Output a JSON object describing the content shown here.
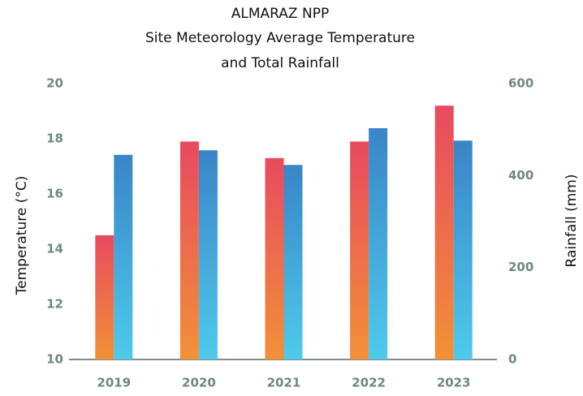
{
  "chart_data": {
    "type": "bar",
    "title": [
      "ALMARAZ NPP",
      "Site Meteorology Average Temperature",
      "and Total Rainfall"
    ],
    "categories": [
      "2019",
      "2020",
      "2021",
      "2022",
      "2023"
    ],
    "series": [
      {
        "color": "#e84a5f",
        "gradient_to": "#f29137",
        "values": [
          14.5,
          17.9,
          17.3,
          17.9,
          19.2
        ]
      },
      {
        "color": "#3985c7",
        "gradient_to": "#4fcaec",
        "axis": "y2",
        "values": [
          445,
          455,
          423,
          503,
          476
        ]
      }
    ],
    "ylabel": "Temperature (°C)",
    "y2label": "Rainfall (mm)",
    "ylim": [
      10,
      20
    ],
    "yticks": [
      10,
      12,
      14,
      16,
      18,
      20
    ],
    "y2lim": [
      0,
      600
    ],
    "y2ticks": [
      0,
      200,
      400,
      600
    ],
    "grid": false
  }
}
